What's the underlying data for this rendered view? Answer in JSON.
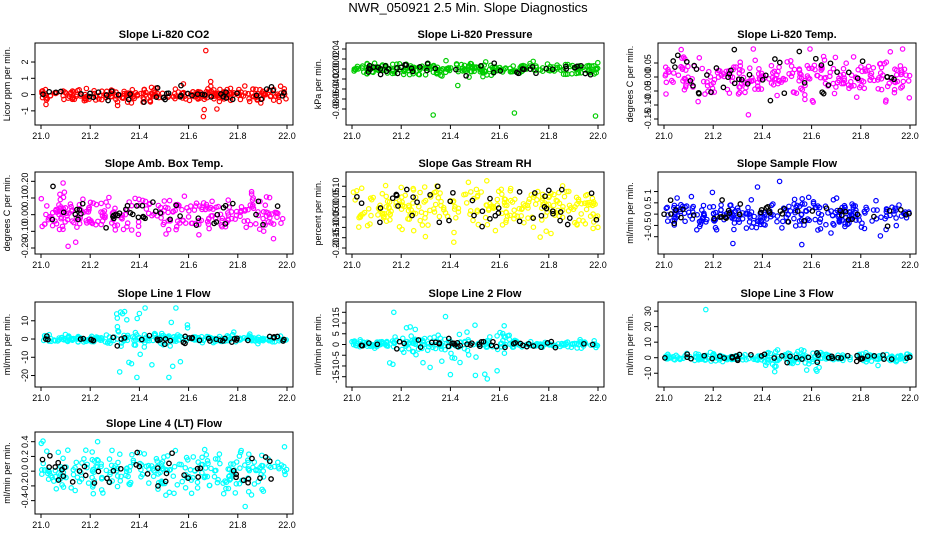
{
  "figure_title": "NWR_050921  2.5 Min. Slope Diagnostics",
  "colors": {
    "black": "#000000"
  },
  "chart_data": [
    {
      "type": "scatter",
      "title": "Slope Li-820 CO2",
      "ylabel": "Licor ppm per min.",
      "color": "#ff0000",
      "xlim": [
        21.0,
        22.0
      ],
      "ylim": [
        -1.5,
        2.8
      ],
      "xticks": [
        21.0,
        21.2,
        21.4,
        21.6,
        21.8,
        22.0
      ],
      "xtick_labels": [
        "21.0",
        "21.2",
        "21.4",
        "21.6",
        "21.8",
        "22.0"
      ],
      "yticks": [
        -1,
        0,
        1,
        2
      ],
      "ytick_labels": [
        "-1",
        "0",
        "1",
        "2"
      ],
      "spread": 0.22,
      "outliers": [
        [
          21.67,
          2.7
        ],
        [
          21.66,
          -1.35
        ],
        [
          21.69,
          0.8
        ]
      ]
    },
    {
      "type": "scatter",
      "title": "Slope Li-820 Pressure",
      "ylabel": "kPa per min.",
      "color": "#00cc00",
      "xlim": [
        21.0,
        22.0
      ],
      "ylim": [
        -0.1,
        0.04
      ],
      "xticks": [
        21.0,
        21.2,
        21.4,
        21.6,
        21.8,
        22.0
      ],
      "xtick_labels": [
        "21.0",
        "21.2",
        "21.4",
        "21.6",
        "21.8",
        "22.0"
      ],
      "yticks": [
        -0.08,
        -0.06,
        -0.04,
        -0.02,
        0.0,
        0.02,
        0.04
      ],
      "ytick_labels": [
        "-0.08",
        "-0.06",
        "-0.04",
        "-0.02",
        "0.00",
        "0.02",
        "0.04"
      ],
      "spread": 0.006,
      "outliers": [
        [
          21.33,
          -0.092
        ],
        [
          21.66,
          -0.088
        ],
        [
          21.99,
          -0.094
        ],
        [
          21.43,
          -0.033
        ]
      ]
    },
    {
      "type": "scatter",
      "title": "Slope Li-820 Temp.",
      "ylabel": "degrees C per min.",
      "color": "#ff00ff",
      "xlim": [
        21.0,
        22.0
      ],
      "ylim": [
        -0.15,
        0.1
      ],
      "xticks": [
        21.0,
        21.2,
        21.4,
        21.6,
        21.8,
        22.0
      ],
      "xtick_labels": [
        "21.0",
        "21.2",
        "21.4",
        "21.6",
        "21.8",
        "22.0"
      ],
      "yticks": [
        -0.15,
        -0.1,
        -0.05,
        0.0,
        0.05
      ],
      "ytick_labels": [
        "-0.15",
        "-0.10",
        "-0.05",
        "0.00",
        "0.05"
      ],
      "spread": 0.035,
      "outliers": [
        [
          21.07,
          0.098
        ],
        [
          21.97,
          0.1
        ],
        [
          21.92,
          0.09
        ]
      ]
    },
    {
      "type": "scatter",
      "title": "Slope Amb. Box Temp.",
      "ylabel": "degrees C per min.",
      "color": "#ff00ff",
      "xlim": [
        21.0,
        22.0
      ],
      "ylim": [
        -0.2,
        0.22
      ],
      "xticks": [
        21.0,
        21.2,
        21.4,
        21.6,
        21.8,
        22.0
      ],
      "xtick_labels": [
        "21.0",
        "21.2",
        "21.4",
        "21.6",
        "21.8",
        "22.0"
      ],
      "yticks": [
        -0.2,
        -0.1,
        0.0,
        0.1,
        0.2
      ],
      "ytick_labels": [
        "-0.20",
        "-0.10",
        "0.00",
        "0.10",
        "0.20"
      ],
      "spread": 0.055,
      "outliers": [
        [
          21.09,
          0.19
        ],
        [
          21.11,
          -0.19
        ]
      ]
    },
    {
      "type": "scatter",
      "title": "Slope Gas Stream RH",
      "ylabel": "percent per min.",
      "color": "#ffff00",
      "xlim": [
        21.0,
        22.0
      ],
      "ylim": [
        -0.2,
        0.14
      ],
      "xticks": [
        21.0,
        21.2,
        21.4,
        21.6,
        21.8,
        22.0
      ],
      "xtick_labels": [
        "21.0",
        "21.2",
        "21.4",
        "21.6",
        "21.8",
        "22.0"
      ],
      "yticks": [
        -0.2,
        -0.15,
        -0.1,
        -0.05,
        0.0,
        0.05,
        0.1
      ],
      "ytick_labels": [
        "-0.20",
        "-0.15",
        "-0.10",
        "-0.05",
        "0.00",
        "0.05",
        "0.10"
      ],
      "spread": 0.055,
      "outliers": []
    },
    {
      "type": "scatter",
      "title": "Slope Sample Flow",
      "ylabel": "ml/min per min.",
      "color": "#0000ff",
      "xlim": [
        21.0,
        22.0
      ],
      "ylim": [
        -1.5,
        1.6
      ],
      "xticks": [
        21.0,
        21.2,
        21.4,
        21.6,
        21.8,
        22.0
      ],
      "xtick_labels": [
        "21.0",
        "21.2",
        "21.4",
        "21.6",
        "21.8",
        "22.0"
      ],
      "yticks": [
        -1,
        -0.5,
        0,
        0.5,
        1
      ],
      "ytick_labels": [
        "-1",
        "-0.5",
        "0",
        "0.5",
        "1"
      ],
      "spread": 0.3,
      "outliers": [
        [
          21.47,
          1.45
        ],
        [
          21.28,
          -1.3
        ],
        [
          21.56,
          -1.35
        ],
        [
          21.38,
          1.2
        ]
      ]
    },
    {
      "type": "scatter",
      "title": "Slope Line 1 Flow",
      "ylabel": "ml/min per min.",
      "color": "#00ffff",
      "xlim": [
        21.0,
        22.0
      ],
      "ylim": [
        -23,
        17
      ],
      "xticks": [
        21.0,
        21.2,
        21.4,
        21.6,
        21.8,
        22.0
      ],
      "xtick_labels": [
        "21.0",
        "21.2",
        "21.4",
        "21.6",
        "21.8",
        "22.0"
      ],
      "yticks": [
        -20,
        -10,
        0,
        10
      ],
      "ytick_labels": [
        "-20",
        "-10",
        "0",
        "10"
      ],
      "spread": 1.0,
      "burst": {
        "x0": 21.25,
        "x1": 21.6,
        "amp": 9
      },
      "outliers": [
        [
          21.34,
          15
        ],
        [
          21.4,
          14
        ],
        [
          21.39,
          -21
        ],
        [
          21.52,
          -21
        ],
        [
          21.32,
          -18
        ]
      ]
    },
    {
      "type": "scatter",
      "title": "Slope Line 2 Flow",
      "ylabel": "ml/min per min.",
      "color": "#00ffff",
      "xlim": [
        21.0,
        22.0
      ],
      "ylim": [
        -17,
        17
      ],
      "xticks": [
        21.0,
        21.2,
        21.4,
        21.6,
        21.8,
        22.0
      ],
      "xtick_labels": [
        "21.0",
        "21.2",
        "21.4",
        "21.6",
        "21.8",
        "22.0"
      ],
      "yticks": [
        -15,
        -10,
        -5,
        0,
        5,
        10,
        15
      ],
      "ytick_labels": [
        "-15",
        "-10",
        "-5",
        "0",
        "5",
        "10",
        "15"
      ],
      "spread": 0.9,
      "burst": {
        "x0": 21.15,
        "x1": 21.65,
        "amp": 7
      },
      "outliers": [
        [
          21.17,
          15
        ],
        [
          21.38,
          13
        ],
        [
          21.4,
          -14
        ],
        [
          21.55,
          -16
        ],
        [
          21.5,
          9
        ]
      ]
    },
    {
      "type": "scatter",
      "title": "Slope Line 3 Flow",
      "ylabel": "ml/min per min.",
      "color": "#00ffff",
      "xlim": [
        21.0,
        22.0
      ],
      "ylim": [
        -15,
        32
      ],
      "xticks": [
        21.0,
        21.2,
        21.4,
        21.6,
        21.8,
        22.0
      ],
      "xtick_labels": [
        "21.0",
        "21.2",
        "21.4",
        "21.6",
        "21.8",
        "22.0"
      ],
      "yticks": [
        -10,
        0,
        10,
        20,
        30
      ],
      "ytick_labels": [
        "-10",
        "0",
        "10",
        "20",
        "30"
      ],
      "spread": 1.3,
      "burst": {
        "x0": 21.4,
        "x1": 21.65,
        "amp": 4
      },
      "outliers": [
        [
          21.17,
          31
        ],
        [
          21.45,
          -9
        ],
        [
          21.58,
          -8
        ],
        [
          21.87,
          -5
        ]
      ]
    },
    {
      "type": "scatter",
      "title": "Slope Line 4 (LT) Flow",
      "ylabel": "ml/min per min.",
      "color": "#00ffff",
      "xlim": [
        21.0,
        22.0
      ],
      "ylim": [
        -0.5,
        0.45
      ],
      "xticks": [
        21.0,
        21.2,
        21.4,
        21.6,
        21.8,
        22.0
      ],
      "xtick_labels": [
        "21.0",
        "21.2",
        "21.4",
        "21.6",
        "21.8",
        "22.0"
      ],
      "yticks": [
        -0.4,
        -0.2,
        0.0,
        0.2,
        0.4
      ],
      "ytick_labels": [
        "-0.4",
        "-0.2",
        "0.0",
        "0.2",
        "0.4"
      ],
      "spread": 0.14,
      "outliers": [
        [
          21.83,
          -0.48
        ],
        [
          21.99,
          0.33
        ],
        [
          21.23,
          0.4
        ]
      ]
    }
  ]
}
